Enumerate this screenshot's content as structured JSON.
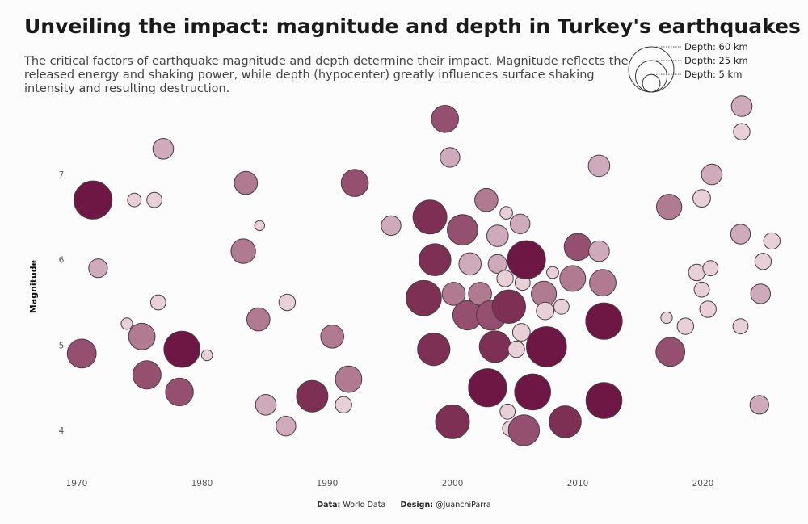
{
  "title": "Unveiling the impact: magnitude and depth in Turkey's earthquakes",
  "subtitle": "The critical factors of earthquake magnitude and depth determine their impact. Magnitude reflects the released energy and shaking power, while depth (hypocenter) greatly influences surface shaking intensity and resulting destruction.",
  "caption": {
    "data_label": "Data:",
    "data_value": "World Data",
    "design_label": "Design:",
    "design_value": "@JuanchiParra"
  },
  "colors": {
    "scale": [
      "#e8d0d8",
      "#cfaabb",
      "#b07a91",
      "#94506e",
      "#7d2f54",
      "#6e1744"
    ],
    "stroke": "#4a3a44",
    "axis_text": "#555555"
  },
  "chart_data": {
    "type": "scatter",
    "xlabel": "",
    "ylabel": "Magnitude",
    "xlim": [
      1966,
      2027
    ],
    "ylim": [
      3.5,
      7.9
    ],
    "x_ticks": [
      1970,
      1980,
      1990,
      2000,
      2010,
      2020
    ],
    "y_ticks": [
      4,
      5,
      6,
      7
    ],
    "size_encoding": "depth_km",
    "color_encoding": "depth_km",
    "legend": {
      "placement": "top-right",
      "entries": [
        {
          "label": "Depth: 60 km",
          "depth": 60
        },
        {
          "label": "Depth: 25 km",
          "depth": 25
        },
        {
          "label": "Depth: 5 km",
          "depth": 5
        }
      ]
    },
    "points": [
      {
        "year": 1970.4,
        "magnitude": 4.9,
        "depth": 20
      },
      {
        "year": 1971.3,
        "magnitude": 6.7,
        "depth": 40
      },
      {
        "year": 1971.7,
        "magnitude": 5.9,
        "depth": 6
      },
      {
        "year": 1974,
        "magnitude": 5.25,
        "depth": 1
      },
      {
        "year": 1974.6,
        "magnitude": 6.7,
        "depth": 2
      },
      {
        "year": 1975.2,
        "magnitude": 5.1,
        "depth": 16
      },
      {
        "year": 1975.6,
        "magnitude": 4.65,
        "depth": 19
      },
      {
        "year": 1976.2,
        "magnitude": 6.7,
        "depth": 3
      },
      {
        "year": 1976.5,
        "magnitude": 5.5,
        "depth": 3
      },
      {
        "year": 1976.9,
        "magnitude": 7.3,
        "depth": 8
      },
      {
        "year": 1978.2,
        "magnitude": 4.45,
        "depth": 18
      },
      {
        "year": 1978.4,
        "magnitude": 4.95,
        "depth": 35
      },
      {
        "year": 1980.4,
        "magnitude": 4.88,
        "depth": 0.8
      },
      {
        "year": 1983.5,
        "magnitude": 6.9,
        "depth": 11
      },
      {
        "year": 1983.3,
        "magnitude": 6.1,
        "depth": 13
      },
      {
        "year": 1984.6,
        "magnitude": 6.4,
        "depth": 0.5
      },
      {
        "year": 1984.5,
        "magnitude": 5.3,
        "depth": 11
      },
      {
        "year": 1985.1,
        "magnitude": 4.3,
        "depth": 8
      },
      {
        "year": 1986.7,
        "magnitude": 4.05,
        "depth": 7
      },
      {
        "year": 1986.8,
        "magnitude": 5.5,
        "depth": 4
      },
      {
        "year": 1988.8,
        "magnitude": 4.4,
        "depth": 25
      },
      {
        "year": 1990.4,
        "magnitude": 5.1,
        "depth": 11
      },
      {
        "year": 1991.3,
        "magnitude": 4.3,
        "depth": 4
      },
      {
        "year": 1991.7,
        "magnitude": 4.6,
        "depth": 16
      },
      {
        "year": 1992.2,
        "magnitude": 6.9,
        "depth": 17
      },
      {
        "year": 1995.1,
        "magnitude": 6.4,
        "depth": 7
      },
      {
        "year": 1997.7,
        "magnitude": 5.55,
        "depth": 33
      },
      {
        "year": 1998.2,
        "magnitude": 6.5,
        "depth": 30
      },
      {
        "year": 1998.5,
        "magnitude": 4.95,
        "depth": 27
      },
      {
        "year": 1998.6,
        "magnitude": 6.0,
        "depth": 26
      },
      {
        "year": 1999.4,
        "magnitude": 7.65,
        "depth": 17
      },
      {
        "year": 1999.8,
        "magnitude": 7.2,
        "depth": 7
      },
      {
        "year": 2000,
        "magnitude": 4.1,
        "depth": 30
      },
      {
        "year": 2000.1,
        "magnitude": 5.6,
        "depth": 11
      },
      {
        "year": 2000.8,
        "magnitude": 6.35,
        "depth": 23
      },
      {
        "year": 2001.2,
        "magnitude": 5.35,
        "depth": 21
      },
      {
        "year": 2001.4,
        "magnitude": 5.95,
        "depth": 10
      },
      {
        "year": 2002.2,
        "magnitude": 5.6,
        "depth": 11
      },
      {
        "year": 2002.7,
        "magnitude": 6.7,
        "depth": 11
      },
      {
        "year": 2002.8,
        "magnitude": 4.5,
        "depth": 40
      },
      {
        "year": 2003.1,
        "magnitude": 5.35,
        "depth": 22
      },
      {
        "year": 2003.6,
        "magnitude": 6.28,
        "depth": 9
      },
      {
        "year": 2003.4,
        "magnitude": 4.98,
        "depth": 25
      },
      {
        "year": 2003.6,
        "magnitude": 5.95,
        "depth": 6
      },
      {
        "year": 2004.2,
        "magnitude": 5.78,
        "depth": 4
      },
      {
        "year": 2004.3,
        "magnitude": 6.55,
        "depth": 1.5
      },
      {
        "year": 2004.4,
        "magnitude": 4.22,
        "depth": 3
      },
      {
        "year": 2004.6,
        "magnitude": 4.02,
        "depth": 3
      },
      {
        "year": 2004.5,
        "magnitude": 5.45,
        "depth": 29
      },
      {
        "year": 2005.1,
        "magnitude": 4.95,
        "depth": 4
      },
      {
        "year": 2005.5,
        "magnitude": 5.15,
        "depth": 5
      },
      {
        "year": 2005.4,
        "magnitude": 6.42,
        "depth": 7
      },
      {
        "year": 2005.6,
        "magnitude": 5.73,
        "depth": 3
      },
      {
        "year": 2005.9,
        "magnitude": 6.0,
        "depth": 40
      },
      {
        "year": 2005.7,
        "magnitude": 4.0,
        "depth": 24
      },
      {
        "year": 2006.4,
        "magnitude": 4.45,
        "depth": 35
      },
      {
        "year": 2007.5,
        "magnitude": 4.98,
        "depth": 45
      },
      {
        "year": 2007.3,
        "magnitude": 5.6,
        "depth": 14
      },
      {
        "year": 2007.4,
        "magnitude": 5.4,
        "depth": 5
      },
      {
        "year": 2008,
        "magnitude": 5.85,
        "depth": 1.2
      },
      {
        "year": 2008.7,
        "magnitude": 5.45,
        "depth": 3
      },
      {
        "year": 2009,
        "magnitude": 4.1,
        "depth": 26
      },
      {
        "year": 2009.6,
        "magnitude": 5.78,
        "depth": 15
      },
      {
        "year": 2010,
        "magnitude": 6.15,
        "depth": 17
      },
      {
        "year": 2011.7,
        "magnitude": 7.1,
        "depth": 9
      },
      {
        "year": 2011.7,
        "magnitude": 6.1,
        "depth": 8
      },
      {
        "year": 2012,
        "magnitude": 5.73,
        "depth": 16
      },
      {
        "year": 2012.1,
        "magnitude": 5.28,
        "depth": 36
      },
      {
        "year": 2012.1,
        "magnitude": 4.35,
        "depth": 35
      },
      {
        "year": 2017.1,
        "magnitude": 5.32,
        "depth": 1
      },
      {
        "year": 2017.3,
        "magnitude": 6.62,
        "depth": 14
      },
      {
        "year": 2017.4,
        "magnitude": 4.92,
        "depth": 20
      },
      {
        "year": 2018.6,
        "magnitude": 5.22,
        "depth": 4
      },
      {
        "year": 2019.5,
        "magnitude": 5.85,
        "depth": 4
      },
      {
        "year": 2019.9,
        "magnitude": 5.65,
        "depth": 3
      },
      {
        "year": 2019.9,
        "magnitude": 6.72,
        "depth": 5
      },
      {
        "year": 2020.4,
        "magnitude": 5.42,
        "depth": 4
      },
      {
        "year": 2020.6,
        "magnitude": 5.9,
        "depth": 3
      },
      {
        "year": 2020.7,
        "magnitude": 7.0,
        "depth": 8
      },
      {
        "year": 2023.1,
        "magnitude": 7.8,
        "depth": 8
      },
      {
        "year": 2023.1,
        "magnitude": 7.5,
        "depth": 4
      },
      {
        "year": 2023,
        "magnitude": 6.3,
        "depth": 7
      },
      {
        "year": 2023,
        "magnitude": 5.22,
        "depth": 3
      },
      {
        "year": 2024.5,
        "magnitude": 4.3,
        "depth": 6
      },
      {
        "year": 2024.6,
        "magnitude": 5.6,
        "depth": 7
      },
      {
        "year": 2024.8,
        "magnitude": 5.98,
        "depth": 4
      },
      {
        "year": 2025.5,
        "magnitude": 6.22,
        "depth": 4
      }
    ]
  }
}
